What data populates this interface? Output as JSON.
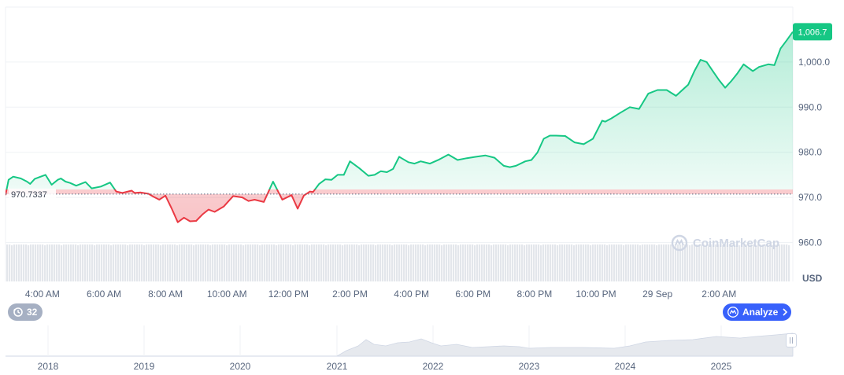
{
  "chart_data": {
    "type": "area",
    "currency": "USD",
    "reference_label": "970.7337",
    "reference_value": 970.7337,
    "last_price_label": "1,006.7",
    "last_price": 1006.7,
    "ylim": [
      958,
      1012
    ],
    "y_ticks": [
      {
        "value": 960,
        "label": "960.0"
      },
      {
        "value": 970,
        "label": "970.0"
      },
      {
        "value": 980,
        "label": "980.0"
      },
      {
        "value": 990,
        "label": "990.0"
      },
      {
        "value": 1000,
        "label": "1,000.0"
      }
    ],
    "x_range_hours": [
      2.8,
      28.4
    ],
    "x_ticks": [
      {
        "hour": 4,
        "label": "4:00 AM"
      },
      {
        "hour": 6,
        "label": "6:00 AM"
      },
      {
        "hour": 8,
        "label": "8:00 AM"
      },
      {
        "hour": 10,
        "label": "10:00 AM"
      },
      {
        "hour": 12,
        "label": "12:00 PM"
      },
      {
        "hour": 14,
        "label": "2:00 PM"
      },
      {
        "hour": 16,
        "label": "4:00 PM"
      },
      {
        "hour": 18,
        "label": "6:00 PM"
      },
      {
        "hour": 20,
        "label": "8:00 PM"
      },
      {
        "hour": 22,
        "label": "10:00 PM"
      },
      {
        "hour": 24,
        "label": "29 Sep"
      },
      {
        "hour": 26,
        "label": "2:00 AM"
      }
    ],
    "series": [
      {
        "x": [
          2.8,
          2.9,
          3.05,
          3.3,
          3.5,
          3.6,
          3.75,
          3.9,
          4.1,
          4.3,
          4.5,
          4.6,
          4.75,
          4.9,
          5.1,
          5.4,
          5.6,
          5.9,
          6.2,
          6.4,
          6.6,
          6.9,
          7.0,
          7.2,
          7.45,
          7.6,
          7.8,
          8.0,
          8.2,
          8.4,
          8.6,
          8.8,
          9.0,
          9.2,
          9.4,
          9.6,
          9.9,
          10.2,
          10.5,
          10.7,
          10.9,
          11.2,
          11.5,
          11.8,
          12.1,
          12.3,
          12.5,
          12.7,
          12.8,
          13.0,
          13.2,
          13.4,
          13.6,
          13.8,
          14.0,
          14.3,
          14.6,
          14.8,
          15.0,
          15.2,
          15.4,
          15.6,
          15.9,
          16.1,
          16.3,
          16.6,
          16.9,
          17.2,
          17.5,
          17.8,
          18.1,
          18.4,
          18.7,
          19.0,
          19.2,
          19.4,
          19.7,
          19.9,
          20.1,
          20.3,
          20.5,
          20.7,
          21.0,
          21.3,
          21.6,
          21.9,
          22.2,
          22.3,
          22.5,
          22.8,
          23.1,
          23.4,
          23.7,
          24.0,
          24.3,
          24.6,
          25.0,
          25.2,
          25.4,
          25.6,
          25.8,
          26.0,
          26.2,
          26.4,
          26.6,
          26.8,
          27.1,
          27.3,
          27.6,
          27.8,
          28.0,
          28.2,
          28.4
        ],
        "y": [
          970.5,
          973.9,
          974.6,
          974.2,
          973.5,
          973.0,
          974.1,
          974.5,
          975.0,
          972.8,
          973.9,
          974.2,
          973.5,
          973.2,
          972.6,
          973.4,
          972.0,
          972.4,
          973.3,
          971.3,
          971.0,
          971.5,
          971.0,
          971.1,
          970.8,
          970.2,
          969.5,
          970.4,
          967.6,
          964.5,
          965.5,
          964.7,
          964.8,
          966.2,
          967.3,
          966.8,
          968.0,
          970.3,
          970.0,
          969.2,
          969.5,
          969.0,
          973.5,
          969.5,
          970.5,
          967.5,
          970.4,
          971.3,
          971.2,
          973.0,
          974.0,
          973.9,
          975.0,
          975.0,
          978.0,
          976.5,
          974.8,
          975.0,
          975.8,
          975.6,
          976.3,
          979.0,
          977.8,
          977.5,
          978.0,
          977.5,
          978.4,
          979.5,
          978.3,
          978.7,
          979.0,
          979.3,
          978.8,
          977.0,
          976.7,
          977.0,
          978.0,
          978.3,
          980.0,
          983.0,
          983.7,
          983.7,
          983.6,
          982.2,
          981.8,
          983.0,
          987.0,
          986.8,
          987.5,
          988.8,
          990.0,
          989.6,
          993.0,
          993.8,
          993.8,
          992.5,
          995.0,
          998.0,
          1000.5,
          1000.0,
          998.0,
          996.0,
          994.3,
          995.8,
          997.5,
          999.5,
          998.0,
          998.9,
          999.5,
          999.3,
          1003.0,
          1004.8,
          1006.7
        ]
      }
    ],
    "overview_years": [
      "2018",
      "2019",
      "2020",
      "2021",
      "2022",
      "2023",
      "2024",
      "2025"
    ],
    "watermark": "CoinMarketCap"
  },
  "controls": {
    "history_count": "32",
    "analyze_label": "Analyze"
  },
  "colors": {
    "up": "#16c784",
    "down": "#ea3943",
    "grid": "#eff2f5",
    "axis_text": "#58667e",
    "accent": "#3861fb",
    "volume": "#e3e6eb"
  },
  "icons": {
    "history": "history-clock-icon",
    "analyze": "analyze-chart-icon",
    "chevron": "chevron-right-icon",
    "watermark_logo": "coinmarketcap-logo-icon"
  }
}
